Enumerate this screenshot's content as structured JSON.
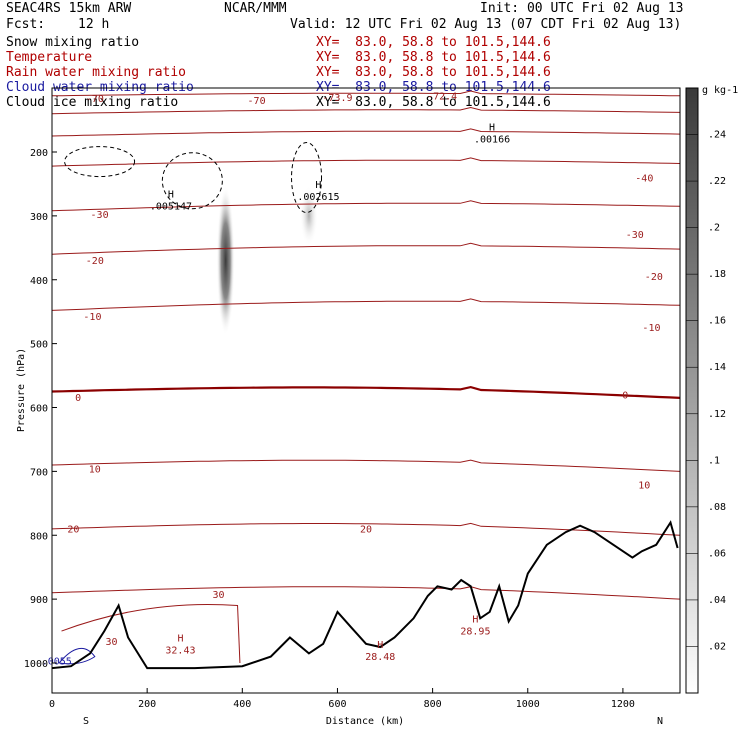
{
  "header": {
    "model": "SEAC4RS 15km ARW",
    "org": "NCAR/MMM",
    "init": "Init: 00 UTC Fri 02 Aug 13",
    "fcst_label": "Fcst:",
    "fcst_value": "12 h",
    "valid": "Valid: 12 UTC Fri 02 Aug 13 (07 CDT Fri 02 Aug 13)"
  },
  "fields": [
    {
      "name": "Snow mixing ratio",
      "xy": "XY=  83.0, 58.8 to 101.5,144.6",
      "color": "#000000"
    },
    {
      "name": "Temperature",
      "xy": "XY=  83.0, 58.8 to 101.5,144.6",
      "color": "#b00000"
    },
    {
      "name": "Rain water mixing ratio",
      "xy": "XY=  83.0, 58.8 to 101.5,144.6",
      "color": "#d00000"
    },
    {
      "name": "Cloud water mixing ratio",
      "xy": "XY=  83.0, 58.8 to 101.5,144.6",
      "color": "#1a1aa0"
    },
    {
      "name": "Cloud ice mixing ratio",
      "xy": "XY=  83.0, 58.8 to 101.5,144.6",
      "color": "#000000"
    }
  ],
  "chart_data": {
    "type": "cross-section",
    "xlabel": "Distance (km)",
    "ylabel": "Pressure (hPa)",
    "xlim": [
      0,
      1320
    ],
    "ylim": [
      100,
      1050
    ],
    "x_ticks": [
      "0",
      "200",
      "400",
      "600",
      "800",
      "1000",
      "1200"
    ],
    "x_tick_values": [
      0,
      200,
      400,
      600,
      800,
      1000,
      1200
    ],
    "y_ticks": [
      "200",
      "300",
      "400",
      "500",
      "600",
      "700",
      "800",
      "900",
      "1000"
    ],
    "y_tick_values": [
      200,
      300,
      400,
      500,
      600,
      700,
      800,
      900,
      1000
    ],
    "end_labels": {
      "left": "S",
      "right": "N"
    },
    "temperature_contours": [
      {
        "value": -70,
        "levels": [
          112,
          112
        ]
      },
      {
        "value": -60,
        "levels": [
          140,
          138
        ]
      },
      {
        "value": -50,
        "levels": [
          175,
          172
        ]
      },
      {
        "value": -40,
        "levels": [
          222,
          218
        ]
      },
      {
        "value": -30,
        "levels": [
          292,
          285
        ]
      },
      {
        "value": -20,
        "levels": [
          360,
          352
        ]
      },
      {
        "value": -10,
        "levels": [
          448,
          440
        ]
      },
      {
        "value": 0,
        "levels": [
          575,
          585
        ]
      },
      {
        "value": 10,
        "levels": [
          690,
          700
        ]
      },
      {
        "value": 20,
        "levels": [
          790,
          800
        ]
      },
      {
        "value": 30,
        "levels": [
          890,
          900
        ]
      }
    ],
    "contour_labels": [
      {
        "text": "-70",
        "x": 90,
        "p": 122
      },
      {
        "text": "-70",
        "x": 430,
        "p": 125
      },
      {
        "text": "-73.9",
        "x": 600,
        "p": 120
      },
      {
        "text": "-72.4",
        "x": 820,
        "p": 118
      },
      {
        "text": "-40",
        "x": 1245,
        "p": 246
      },
      {
        "text": "-30",
        "x": 100,
        "p": 303
      },
      {
        "text": "-30",
        "x": 1225,
        "p": 335
      },
      {
        "text": "-20",
        "x": 90,
        "p": 375
      },
      {
        "text": "-20",
        "x": 1265,
        "p": 400
      },
      {
        "text": "-10",
        "x": 85,
        "p": 463
      },
      {
        "text": "-10",
        "x": 1260,
        "p": 480
      },
      {
        "text": "0",
        "x": 55,
        "p": 590
      },
      {
        "text": "0",
        "x": 1205,
        "p": 586
      },
      {
        "text": "10",
        "x": 90,
        "p": 702
      },
      {
        "text": "10",
        "x": 1245,
        "p": 727
      },
      {
        "text": "20",
        "x": 45,
        "p": 796
      },
      {
        "text": "20",
        "x": 660,
        "p": 796
      },
      {
        "text": "30",
        "x": 350,
        "p": 898
      },
      {
        "text": "30",
        "x": 125,
        "p": 972
      }
    ],
    "maxima_labels": [
      {
        "mark": "H",
        "value": ".00166",
        "x": 925,
        "p": 185
      },
      {
        "mark": "H",
        "value": ".005147",
        "x": 250,
        "p": 290
      },
      {
        "mark": "H",
        "value": ".002615",
        "x": 560,
        "p": 275
      },
      {
        "mark": "H",
        "value": "32.43",
        "x": 270,
        "p": 985
      },
      {
        "mark": "H",
        "value": "28.48",
        "x": 690,
        "p": 995
      },
      {
        "mark": "H",
        "value": "28.95",
        "x": 890,
        "p": 955
      },
      {
        "mark": "",
        "value": ".0055",
        "x": 10,
        "p": 1002
      }
    ],
    "terrain_surface_pressure": {
      "x": [
        0,
        40,
        80,
        110,
        140,
        160,
        200,
        300,
        400,
        460,
        500,
        540,
        570,
        600,
        630,
        660,
        690,
        720,
        760,
        790,
        810,
        840,
        860,
        880,
        900,
        920,
        940,
        960,
        980,
        1000,
        1040,
        1080,
        1110,
        1140,
        1180,
        1220,
        1240,
        1270,
        1300,
        1315
      ],
      "p": [
        1008,
        1005,
        985,
        950,
        910,
        960,
        1008,
        1008,
        1005,
        990,
        960,
        985,
        970,
        920,
        945,
        970,
        975,
        960,
        930,
        895,
        880,
        885,
        870,
        880,
        930,
        920,
        880,
        935,
        910,
        860,
        815,
        795,
        785,
        795,
        815,
        835,
        825,
        815,
        780,
        820
      ]
    },
    "snow_mixing_ratio_shading": {
      "units": "g kg-1",
      "colorbar_ticks": [
        "0.02",
        "0.04",
        "0.06",
        "0.08",
        "0.1",
        "0.12",
        "0.14",
        "0.16",
        "0.18",
        "0.2",
        "0.22",
        "0.24"
      ],
      "colorbar_range": [
        0,
        0.26
      ]
    }
  }
}
